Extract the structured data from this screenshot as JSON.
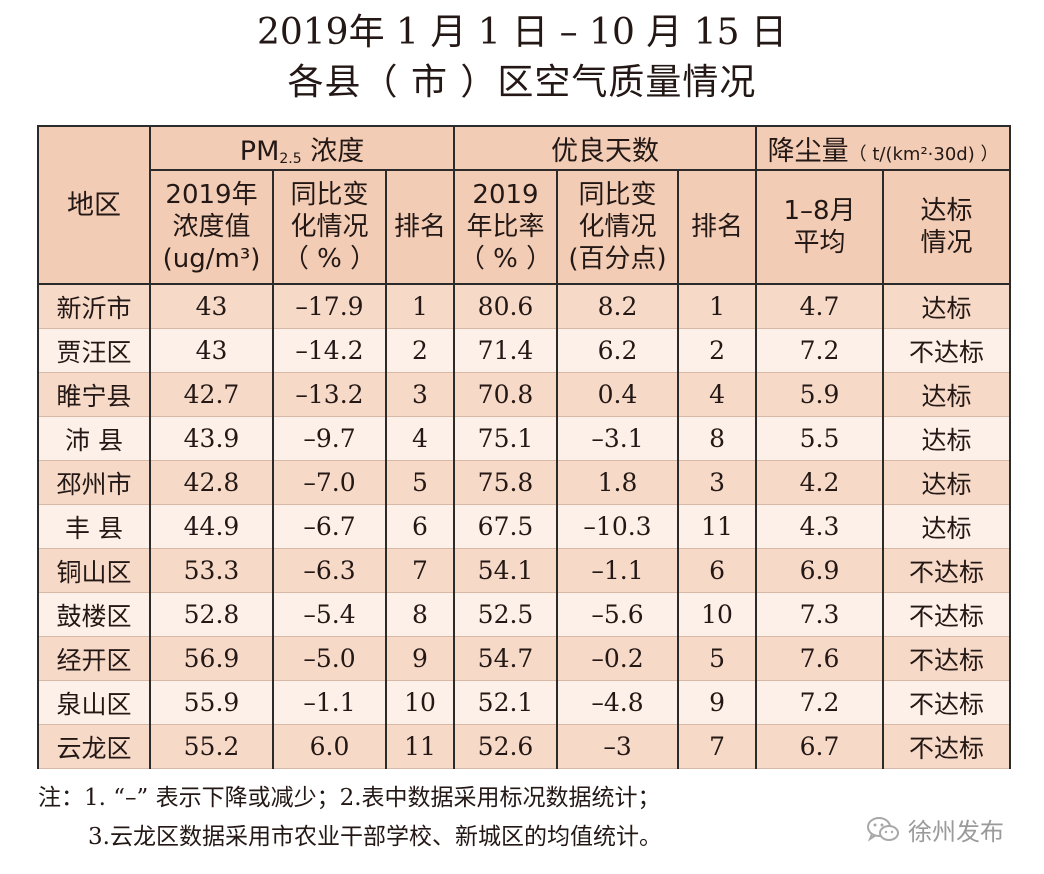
{
  "title": {
    "line1": "2019年 1 月 1 日 – 10 月 15 日",
    "line2": "各县（ 市 ）区空气质量情况"
  },
  "table": {
    "header": {
      "region": "地区",
      "pm_group_prefix": "PM",
      "pm_group_sub": "2.5",
      "pm_group_suffix": " 浓度",
      "good_days_group": "优良天数",
      "dust_group": "降尘量",
      "dust_unit": "（ t/(km²·30d) ）",
      "pm_value_l1": "2019年",
      "pm_value_l2": "浓度值",
      "pm_value_l3": "(ug/m³)",
      "pm_change_l1": "同比变",
      "pm_change_l2": "化情况",
      "pm_change_l3": "（ % ）",
      "pm_rank": "排名",
      "good_rate_l1": "2019",
      "good_rate_l2": "年比率",
      "good_rate_l3": "（ % ）",
      "good_change_l1": "同比变",
      "good_change_l2": "化情况",
      "good_change_l3": "(百分点)",
      "good_rank": "排名",
      "dust_avg_l1": "1–8月",
      "dust_avg_l2": "平均",
      "dust_std_l1": "达标",
      "dust_std_l2": "情况"
    },
    "rows": [
      {
        "region": "新沂市",
        "pm": "43",
        "pm_change": "–17.9",
        "pm_rank": "1",
        "good_rate": "80.6",
        "good_change": "8.2",
        "good_rank": "1",
        "dust": "4.7",
        "std": "达标"
      },
      {
        "region": "贾汪区",
        "pm": "43",
        "pm_change": "–14.2",
        "pm_rank": "2",
        "good_rate": "71.4",
        "good_change": "6.2",
        "good_rank": "2",
        "dust": "7.2",
        "std": "不达标"
      },
      {
        "region": "睢宁县",
        "pm": "42.7",
        "pm_change": "–13.2",
        "pm_rank": "3",
        "good_rate": "70.8",
        "good_change": "0.4",
        "good_rank": "4",
        "dust": "5.9",
        "std": "达标"
      },
      {
        "region": "沛 县",
        "pm": "43.9",
        "pm_change": "–9.7",
        "pm_rank": "4",
        "good_rate": "75.1",
        "good_change": "–3.1",
        "good_rank": "8",
        "dust": "5.5",
        "std": "达标"
      },
      {
        "region": "邳州市",
        "pm": "42.8",
        "pm_change": "–7.0",
        "pm_rank": "5",
        "good_rate": "75.8",
        "good_change": "1.8",
        "good_rank": "3",
        "dust": "4.2",
        "std": "达标"
      },
      {
        "region": "丰 县",
        "pm": "44.9",
        "pm_change": "–6.7",
        "pm_rank": "6",
        "good_rate": "67.5",
        "good_change": "–10.3",
        "good_rank": "11",
        "dust": "4.3",
        "std": "达标"
      },
      {
        "region": "铜山区",
        "pm": "53.3",
        "pm_change": "–6.3",
        "pm_rank": "7",
        "good_rate": "54.1",
        "good_change": "–1.1",
        "good_rank": "6",
        "dust": "6.9",
        "std": "不达标"
      },
      {
        "region": "鼓楼区",
        "pm": "52.8",
        "pm_change": "–5.4",
        "pm_rank": "8",
        "good_rate": "52.5",
        "good_change": "–5.6",
        "good_rank": "10",
        "dust": "7.3",
        "std": "不达标"
      },
      {
        "region": "经开区",
        "pm": "56.9",
        "pm_change": "–5.0",
        "pm_rank": "9",
        "good_rate": "54.7",
        "good_change": "–0.2",
        "good_rank": "5",
        "dust": "7.6",
        "std": "不达标"
      },
      {
        "region": "泉山区",
        "pm": "55.9",
        "pm_change": "–1.1",
        "pm_rank": "10",
        "good_rate": "52.1",
        "good_change": "–4.8",
        "good_rank": "9",
        "dust": "7.2",
        "std": "不达标"
      },
      {
        "region": "云龙区",
        "pm": "55.2",
        "pm_change": "6.0",
        "pm_rank": "11",
        "good_rate": "52.6",
        "good_change": "–3",
        "good_rank": "7",
        "dust": "6.7",
        "std": "不达标"
      }
    ]
  },
  "notes": {
    "line1": "注：1. “–” 表示下降或减少；2.表中数据采用标况数据统计；",
    "line2": "3.云龙区数据采用市农业干部学校、新城区的均值统计。"
  },
  "watermark": {
    "text": "徐州发布",
    "icon": "wechat-icon"
  }
}
